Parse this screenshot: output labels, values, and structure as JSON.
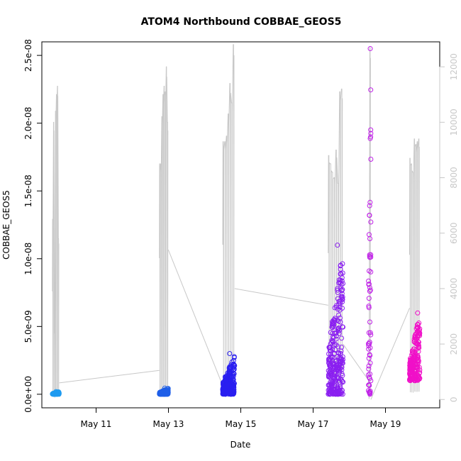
{
  "chart_data": {
    "type": "scatter",
    "title": "ATOM4 Northbound COBBAE_GEOS5",
    "xlabel": "Date",
    "ylabel": "COBBAE_GEOS5",
    "xlim": [
      "2016-05-09 12:00",
      "2016-05-20 12:00"
    ],
    "ylim": [
      -1e-09,
      2.6e-08
    ],
    "y2lim": [
      -300,
      12900
    ],
    "grid": false,
    "legend": "none",
    "x_ticks": [
      {
        "value": "2016-05-11",
        "label": "May 11"
      },
      {
        "value": "2016-05-13",
        "label": "May 13"
      },
      {
        "value": "2016-05-15",
        "label": "May 15"
      },
      {
        "value": "2016-05-17",
        "label": "May 17"
      },
      {
        "value": "2016-05-19",
        "label": "May 19"
      }
    ],
    "y_ticks": [
      {
        "value": 0,
        "label": "0.0e+00"
      },
      {
        "value": 5e-09,
        "label": "5.0e-09"
      },
      {
        "value": 1e-08,
        "label": "1.0e-08"
      },
      {
        "value": 1.5e-08,
        "label": "1.5e-08"
      },
      {
        "value": 2e-08,
        "label": "2.0e-08"
      },
      {
        "value": 2.5e-08,
        "label": "2.5e-08"
      }
    ],
    "y2_ticks": [
      {
        "value": 0,
        "label": "0"
      },
      {
        "value": 2000,
        "label": "2000"
      },
      {
        "value": 4000,
        "label": "4000"
      },
      {
        "value": 6000,
        "label": "6000"
      },
      {
        "value": 8000,
        "label": "8000"
      },
      {
        "value": 10000,
        "label": "10000"
      },
      {
        "value": 12000,
        "label": "12000"
      }
    ],
    "colors": {
      "altitude_line": "#c8c8c8",
      "flights": [
        "#1e9bf0",
        "#1f5fe8",
        "#2a1ff0",
        "#8a1ff0",
        "#c020e8",
        "#f010c8"
      ]
    },
    "flights": [
      {
        "start": "2016-05-09 19:00",
        "end": "2016-05-09 23:30",
        "y_min": 0,
        "y_max": 2e-10,
        "color": "#1e9bf0",
        "altitude_peaks": [
          6500,
          10000,
          2400,
          10400,
          11000,
          11300,
          5800
        ]
      },
      {
        "start": "2016-05-12 18:00",
        "end": "2016-05-12 23:55",
        "y_min": 0,
        "y_max": 4.5e-10,
        "color": "#1f5fe8",
        "altitude_peaks": [
          8500,
          8500,
          10200,
          11000,
          11300,
          11100,
          12000,
          10000
        ]
      },
      {
        "start": "2016-05-14 12:00",
        "end": "2016-05-14 19:55",
        "y_min": 0,
        "y_max": 3e-09,
        "color": "#2a1ff0",
        "altitude_peaks": [
          9300,
          9300,
          9500,
          10300,
          11400,
          10700,
          12800
        ]
      },
      {
        "start": "2016-05-17 10:00",
        "end": "2016-05-17 19:50",
        "y_min": 0,
        "y_max": 1.1e-08,
        "color": "#8a1ff0",
        "altitude_peaks": [
          8800,
          8500,
          8200,
          8000,
          9000,
          7800,
          11100,
          11200
        ]
      },
      {
        "start": "2016-05-18 12:40",
        "end": "2016-05-18 14:20",
        "y_min": 0,
        "y_max": 2.55e-08,
        "color": "#c020e8",
        "altitude_peaks": [
          700,
          12700
        ]
      },
      {
        "start": "2016-05-19 16:00",
        "end": "2016-05-19 22:50",
        "y_min": 1e-09,
        "y_max": 6e-09,
        "color": "#f010c8",
        "altitude_peaks": [
          8700,
          8500,
          8200,
          9400,
          9200,
          9300,
          9400
        ]
      }
    ],
    "transits": [
      {
        "from": "2016-05-09 23:30",
        "to": "2016-05-12 18:00",
        "alt_from": 600,
        "alt_to": 1050
      },
      {
        "from": "2016-05-12 23:55",
        "to": "2016-05-14 12:00",
        "alt_from": 5400,
        "alt_to": 500
      },
      {
        "from": "2016-05-14 19:55",
        "to": "2016-05-17 10:00",
        "alt_from": 4000,
        "alt_to": 3400
      },
      {
        "from": "2016-05-17 19:50",
        "to": "2016-05-18 12:40",
        "alt_from": 2000,
        "alt_to": 700
      },
      {
        "from": "2016-05-18 14:20",
        "to": "2016-05-19 16:00",
        "alt_from": 0,
        "alt_to": 3300
      }
    ]
  }
}
